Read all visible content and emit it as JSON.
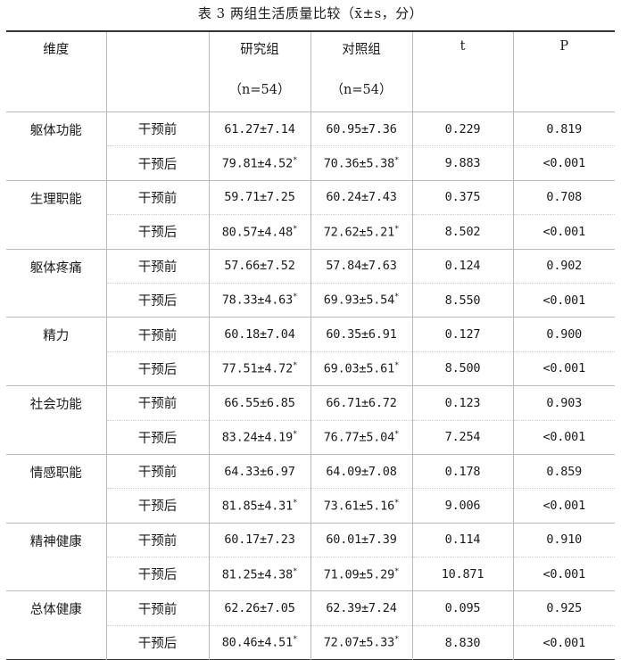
{
  "caption": "表 3 两组生活质量比较（x̄±s，分）",
  "headers": {
    "dimension": "维度",
    "stage": "",
    "study": "研究组",
    "study_n": "（n=54）",
    "control": "对照组",
    "control_n": "（n=54）",
    "t": "t",
    "p": "P"
  },
  "rows": [
    {
      "dim": "躯体功能",
      "pre": {
        "stage": "干预前",
        "study": "61.27±7.14",
        "control": "60.95±7.36",
        "t": "0.229",
        "p": "0.819"
      },
      "post": {
        "stage": "干预后",
        "study": "79.81±4.52",
        "control": "70.36±5.38",
        "t": "9.883",
        "p": "<0.001"
      }
    },
    {
      "dim": "生理职能",
      "pre": {
        "stage": "干预前",
        "study": "59.71±7.25",
        "control": "60.24±7.43",
        "t": "0.375",
        "p": "0.708"
      },
      "post": {
        "stage": "干预后",
        "study": "80.57±4.48",
        "control": "72.62±5.21",
        "t": "8.502",
        "p": "<0.001"
      }
    },
    {
      "dim": "躯体疼痛",
      "pre": {
        "stage": "干预前",
        "study": "57.66±7.52",
        "control": "57.84±7.63",
        "t": "0.124",
        "p": "0.902"
      },
      "post": {
        "stage": "干预后",
        "study": "78.33±4.63",
        "control": "69.93±5.54",
        "t": "8.550",
        "p": "<0.001"
      }
    },
    {
      "dim": "精力",
      "pre": {
        "stage": "干预前",
        "study": "60.18±7.04",
        "control": "60.35±6.91",
        "t": "0.127",
        "p": "0.900"
      },
      "post": {
        "stage": "干预后",
        "study": "77.51±4.72",
        "control": "69.03±5.61",
        "t": "8.500",
        "p": "<0.001"
      }
    },
    {
      "dim": "社会功能",
      "pre": {
        "stage": "干预前",
        "study": "66.55±6.85",
        "control": "66.71±6.72",
        "t": "0.123",
        "p": "0.903"
      },
      "post": {
        "stage": "干预后",
        "study": "83.24±4.19",
        "control": "76.77±5.04",
        "t": "7.254",
        "p": "<0.001"
      }
    },
    {
      "dim": "情感职能",
      "pre": {
        "stage": "干预前",
        "study": "64.33±6.97",
        "control": "64.09±7.08",
        "t": "0.178",
        "p": "0.859"
      },
      "post": {
        "stage": "干预后",
        "study": "81.85±4.31",
        "control": "73.61±5.16",
        "t": "9.006",
        "p": "<0.001"
      }
    },
    {
      "dim": "精神健康",
      "pre": {
        "stage": "干预前",
        "study": "60.17±7.23",
        "control": "60.01±7.39",
        "t": "0.114",
        "p": "0.910"
      },
      "post": {
        "stage": "干预后",
        "study": "81.25±4.38",
        "control": "71.09±5.29",
        "t": "10.871",
        "p": "<0.001"
      }
    },
    {
      "dim": "总体健康",
      "pre": {
        "stage": "干预前",
        "study": "62.26±7.05",
        "control": "62.39±7.24",
        "t": "0.095",
        "p": "0.925"
      },
      "post": {
        "stage": "干预后",
        "study": "80.46±4.51",
        "control": "72.07±5.33",
        "t": "8.830",
        "p": "<0.001"
      }
    }
  ],
  "marker": "*"
}
